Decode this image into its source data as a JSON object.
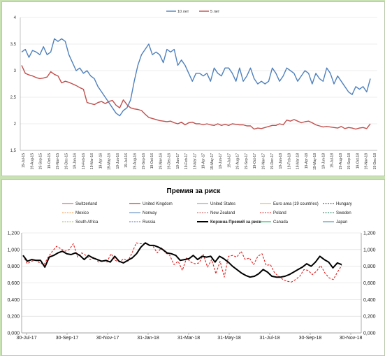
{
  "colors": {
    "ten_year": "#4f81bd",
    "five_year": "#c0504d",
    "grid": "#d9d9d9",
    "premium": "#000000",
    "poland": "#e02020",
    "switzerland": "#c0504d",
    "united_kingdom": "#c00000",
    "united_states": "#9a7fbf",
    "euro_area": "#f5a040",
    "hungary": "#1f3864",
    "mexico": "#f79646",
    "norway": "#4f81bd",
    "new_zealand": "#c0504d",
    "sweden": "#1f7a5a",
    "south_africa": "#9bbb59",
    "russia": "#5b6fb4",
    "canada": "#00b050",
    "japan": "#31859c"
  },
  "chart_data": [
    {
      "type": "line",
      "title": "",
      "xlabel": "",
      "ylabel": "",
      "ylim": [
        1.5,
        4
      ],
      "yticks": [
        "1,5",
        "2",
        "2,5",
        "3",
        "3,5",
        "4"
      ],
      "x_tick_labels": [
        "19-Jul-15",
        "19-Aug-15",
        "19-Sep-15",
        "19-Oct-15",
        "19-Nov-15",
        "19-Dec-15",
        "19-Jan-16",
        "19-Feb-16",
        "19-Mar-16",
        "19-Apr-16",
        "19-May-16",
        "19-Jun-16",
        "19-Jul-16",
        "19-Aug-16",
        "19-Sep-16",
        "19-Oct-16",
        "19-Nov-16",
        "19-Dec-16",
        "19-Jan-17",
        "19-Feb-17",
        "19-Mar-17",
        "19-Apr-17",
        "19-May-17",
        "19-Jun-17",
        "19-Jul-17",
        "19-Aug-17",
        "19-Sep-17",
        "19-Oct-17",
        "19-Nov-17",
        "19-Dec-17",
        "19-Jan-18",
        "19-Feb-18",
        "19-Mar-18",
        "19-Apr-18",
        "19-May-18",
        "19-Jun-18",
        "19-Jul-18",
        "19-Aug-18",
        "19-Sep-18",
        "19-Oct-18",
        "19-Nov-18",
        "19-Dec-18"
      ],
      "legend_position": "top",
      "grid": true,
      "series": [
        {
          "name": "10 лет",
          "values": [
            3.35,
            3.4,
            3.25,
            3.38,
            3.35,
            3.3,
            3.45,
            3.3,
            3.35,
            3.6,
            3.55,
            3.6,
            3.55,
            3.3,
            3.15,
            3.0,
            3.05,
            2.95,
            3.0,
            2.9,
            2.85,
            2.7,
            2.6,
            2.5,
            2.4,
            2.3,
            2.2,
            2.15,
            2.25,
            2.3,
            2.45,
            2.8,
            3.1,
            3.3,
            3.4,
            3.5,
            3.3,
            3.35,
            3.3,
            3.15,
            3.4,
            3.35,
            3.4,
            3.1,
            3.2,
            3.1,
            2.95,
            2.8,
            2.95,
            2.95,
            2.9,
            2.95,
            2.8,
            3.05,
            2.95,
            2.9,
            3.05,
            3.05,
            2.95,
            2.8,
            3.05,
            2.8,
            2.9,
            3.05,
            2.85,
            2.75,
            2.8,
            2.75,
            2.8,
            3.05,
            2.95,
            2.8,
            2.9,
            3.05,
            3.0,
            2.95,
            2.8,
            2.9,
            3.0,
            2.95,
            2.75,
            2.95,
            2.85,
            2.8,
            3.05,
            2.95,
            2.75,
            2.9,
            2.8,
            2.7,
            2.6,
            2.55,
            2.7,
            2.65,
            2.7,
            2.6,
            2.85
          ]
        },
        {
          "name": "5 лет",
          "values": [
            3.1,
            2.95,
            2.92,
            2.9,
            2.87,
            2.85,
            2.86,
            2.88,
            2.98,
            2.93,
            2.9,
            2.77,
            2.8,
            2.78,
            2.75,
            2.72,
            2.68,
            2.65,
            2.4,
            2.38,
            2.36,
            2.4,
            2.42,
            2.38,
            2.42,
            2.44,
            2.35,
            2.3,
            2.45,
            2.36,
            2.3,
            2.28,
            2.27,
            2.25,
            2.18,
            2.12,
            2.1,
            2.08,
            2.06,
            2.05,
            2.04,
            2.05,
            2.02,
            2.0,
            2.03,
            1.98,
            2.02,
            2.03,
            2.0,
            2.0,
            1.98,
            2.0,
            1.98,
            1.97,
            2.0,
            1.97,
            1.99,
            1.97,
            2.0,
            1.99,
            1.98,
            1.98,
            1.96,
            1.96,
            1.9,
            1.92,
            1.91,
            1.93,
            1.95,
            1.97,
            1.97,
            2.0,
            1.98,
            2.07,
            2.05,
            2.08,
            2.05,
            2.02,
            2.04,
            2.05,
            2.02,
            1.98,
            1.96,
            1.94,
            1.95,
            1.94,
            1.93,
            1.92,
            1.95,
            1.91,
            1.93,
            1.92,
            1.9,
            1.92,
            1.93,
            1.91,
            2.0
          ]
        }
      ]
    },
    {
      "type": "line",
      "title": "Премия за риск",
      "xlabel": "",
      "ylabel": "",
      "ylim": [
        0,
        1.2
      ],
      "yticks": [
        "0,000",
        "0,200",
        "0,400",
        "0,600",
        "0,800",
        "1,000",
        "1,200"
      ],
      "x_tick_labels": [
        "30-Jul-17",
        "30-Sep-17",
        "30-Nov-17",
        "31-Jan-18",
        "31-Mar-18",
        "31-May-18",
        "31-Jul-18",
        "30-Sep-18",
        "30-Nov-18"
      ],
      "legend_position": "top",
      "grid": true,
      "legend": [
        {
          "name": "Switzerland",
          "style": "solid",
          "color_key": "switzerland"
        },
        {
          "name": "United Kingdom",
          "style": "solid",
          "color_key": "united_kingdom"
        },
        {
          "name": "United States",
          "style": "solid",
          "color_key": "united_states"
        },
        {
          "name": "Euro area (19 countries)",
          "style": "solid",
          "color_key": "euro_area"
        },
        {
          "name": "Hungary",
          "style": "dashed",
          "color_key": "hungary"
        },
        {
          "name": "Mexico",
          "style": "dashed",
          "color_key": "mexico"
        },
        {
          "name": "Norway",
          "style": "solid",
          "color_key": "norway"
        },
        {
          "name": "New Zealand",
          "style": "dashed",
          "color_key": "new_zealand"
        },
        {
          "name": "Poland",
          "style": "dashed",
          "color_key": "poland"
        },
        {
          "name": "Sweden",
          "style": "dashed",
          "color_key": "sweden"
        },
        {
          "name": "South Africa",
          "style": "dashed",
          "color_key": "south_africa"
        },
        {
          "name": "Russia",
          "style": "dashed",
          "color_key": "russia"
        },
        {
          "name": "Корзина Премий  за риск",
          "style": "bold",
          "color_key": "premium"
        },
        {
          "name": "Canada",
          "style": "solid",
          "color_key": "canada"
        },
        {
          "name": "Japan",
          "style": "solid",
          "color_key": "japan"
        }
      ],
      "series": [
        {
          "name": "Корзина Премий  за риск",
          "values": [
            0.93,
            0.86,
            0.88,
            0.87,
            0.87,
            0.79,
            0.91,
            0.93,
            0.96,
            0.98,
            0.95,
            0.94,
            0.96,
            0.93,
            0.88,
            0.93,
            0.9,
            0.88,
            0.86,
            0.87,
            0.85,
            0.92,
            0.86,
            0.84,
            0.87,
            0.9,
            0.95,
            1.03,
            1.08,
            1.05,
            1.05,
            1.03,
            1.0,
            0.96,
            0.95,
            0.93,
            0.87,
            0.88,
            0.89,
            0.93,
            0.88,
            0.92,
            0.91,
            0.92,
            0.85,
            0.92,
            0.89,
            0.85,
            0.8,
            0.76,
            0.72,
            0.69,
            0.67,
            0.68,
            0.71,
            0.76,
            0.73,
            0.68,
            0.67,
            0.67,
            0.68,
            0.7,
            0.73,
            0.76,
            0.79,
            0.83,
            0.8,
            0.85,
            0.92,
            0.88,
            0.85,
            0.78,
            0.84,
            0.82
          ]
        },
        {
          "name": "Poland",
          "values": [
            0.93,
            0.83,
            0.86,
            0.87,
            0.84,
            0.82,
            0.91,
            0.98,
            1.04,
            1.01,
            0.98,
            1.0,
            1.07,
            0.91,
            0.96,
            0.93,
            0.88,
            0.91,
            0.85,
            0.87,
            0.85,
            0.95,
            0.87,
            0.85,
            0.89,
            0.86,
            0.96,
            1.08,
            1.07,
            1.07,
            1.06,
            1.04,
            0.96,
            1.02,
            0.96,
            0.93,
            0.82,
            0.86,
            0.75,
            0.9,
            0.85,
            0.83,
            0.84,
            0.94,
            0.79,
            0.88,
            0.71,
            0.86,
            0.67,
            0.92,
            0.93,
            0.91,
            0.98,
            0.88,
            0.9,
            0.82,
            0.92,
            0.95,
            0.81,
            0.82,
            0.72,
            0.68,
            0.64,
            0.62,
            0.61,
            0.64,
            0.68,
            0.76,
            0.75,
            0.7,
            0.74,
            0.81,
            0.72,
            0.66,
            0.64,
            0.73,
            0.81
          ]
        }
      ]
    }
  ]
}
